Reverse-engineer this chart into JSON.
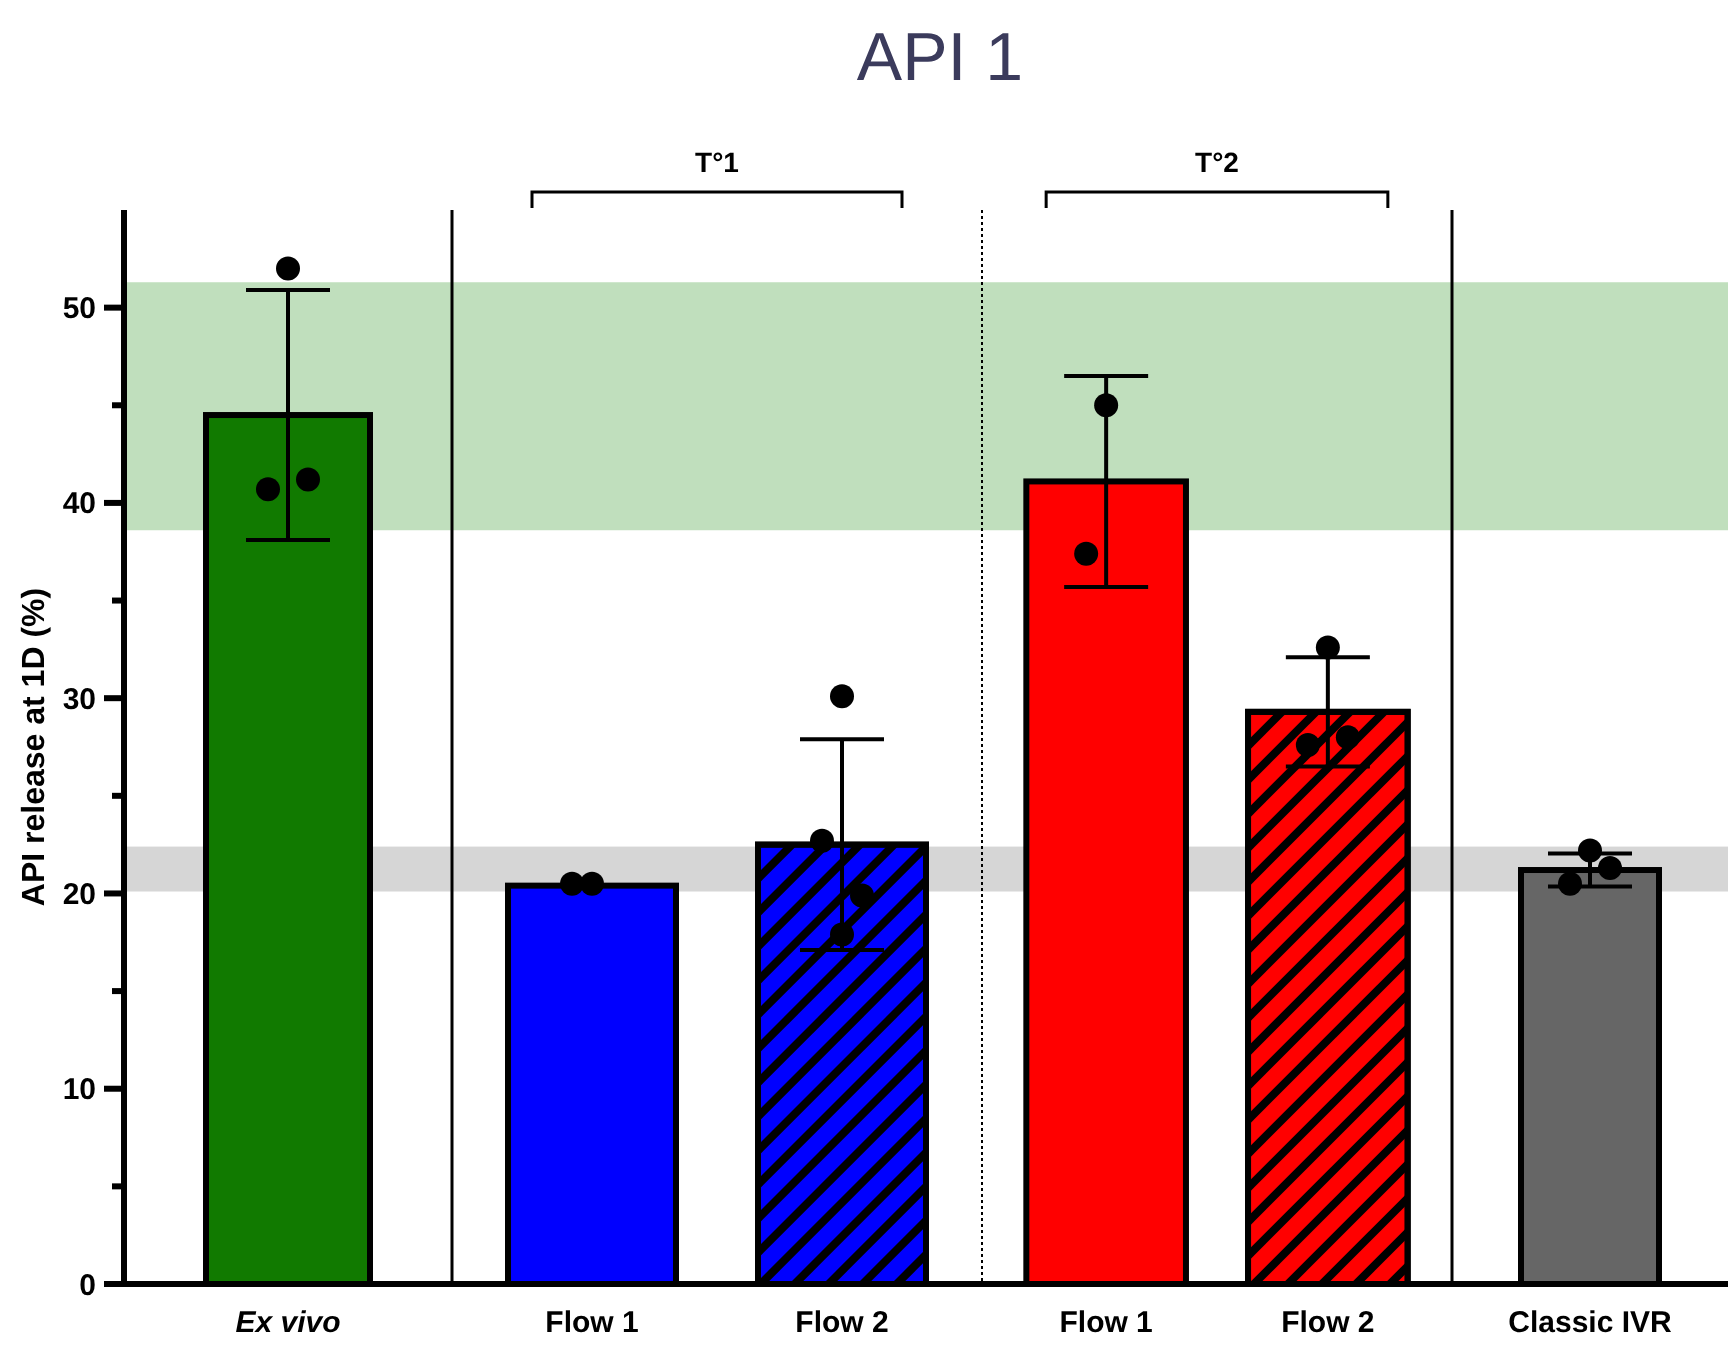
{
  "chart_data": [
    {
      "type": "bar",
      "ylabel": "API release at 1D (%)",
      "categories": [
        "Ex vivo"
      ],
      "series": [
        {
          "colors": [
            "#117a00"
          ],
          "values": [
            44.5
          ],
          "errors": [
            6.4
          ]
        },
        {
          "type": "scatter",
          "color": "#000000",
          "x": [
            "Ex vivo",
            "Ex vivo",
            "Ex vivo"
          ],
          "values": [
            52.0,
            40.7,
            41.2
          ]
        }
      ],
      "ylim": [
        0,
        55
      ],
      "yticks": [
        0,
        {
          "value": 5,
          "label": null
        },
        10,
        {
          "value": 15,
          "label": null
        },
        20,
        {
          "value": 25,
          "label": null
        },
        30,
        {
          "value": 35,
          "label": null
        },
        40,
        {
          "value": 45,
          "label": null
        },
        50
      ],
      "bands": [
        {
          "axis": "y",
          "from": 38.6,
          "to": 51.3,
          "color": "#c0dfbd"
        },
        {
          "axis": "y",
          "from": 20.1,
          "to": 22.4,
          "color": "#d6d6d6"
        }
      ],
      "marker": "circle"
    },
    {
      "type": "bar",
      "title": "API 1",
      "categories": [
        "Flow 1",
        "Flow 2"
      ],
      "series": [
        {
          "colors": [
            "#0000ff",
            "#0000ff"
          ],
          "values": [
            20.4,
            22.5
          ],
          "errors": [
            null,
            5.4
          ]
        },
        {
          "type": "scatter",
          "color": "#000000",
          "x": [
            "Flow 1",
            "Flow 1",
            "Flow 2",
            "Flow 2",
            "Flow 2",
            "Flow 2"
          ],
          "values": [
            20.5,
            20.5,
            30.1,
            22.7,
            19.9,
            17.9
          ]
        }
      ],
      "ylim": [
        0,
        55
      ],
      "tick_labels": "x",
      "bands": [
        {
          "axis": "y",
          "from": 38.6,
          "to": 51.3,
          "color": "#c0dfbd"
        },
        {
          "axis": "y",
          "from": 20.1,
          "to": 22.4,
          "color": "#d6d6d6"
        }
      ],
      "annotations": [
        "T°1"
      ],
      "marker": "circle"
    },
    {
      "type": "bar",
      "categories": [
        "Flow 1",
        "Flow 2"
      ],
      "series": [
        {
          "colors": [
            "#ff0000",
            "#ff0000"
          ],
          "values": [
            41.1,
            29.3
          ],
          "errors": [
            5.4,
            2.8
          ]
        },
        {
          "type": "scatter",
          "color": "#000000",
          "x": [
            "Flow 1",
            "Flow 1",
            "Flow 2",
            "Flow 2",
            "Flow 2"
          ],
          "values": [
            45.0,
            37.4,
            32.6,
            27.6,
            28.0
          ]
        }
      ],
      "ylim": [
        0,
        55
      ],
      "tick_labels": "x",
      "bands": [
        {
          "axis": "y",
          "from": 38.6,
          "to": 51.3,
          "color": "#c0dfbd"
        },
        {
          "axis": "y",
          "from": 20.1,
          "to": 22.4,
          "color": "#d6d6d6"
        }
      ],
      "annotations": [
        "T°2"
      ],
      "marker": "circle"
    },
    {
      "type": "bar",
      "categories": [
        "Classic IVR"
      ],
      "series": [
        {
          "colors": [
            "#666666"
          ],
          "values": [
            21.2
          ],
          "errors": [
            0.85
          ]
        },
        {
          "type": "scatter",
          "color": "#000000",
          "x": [
            "Classic IVR",
            "Classic IVR",
            "Classic IVR"
          ],
          "values": [
            22.2,
            20.5,
            21.3
          ]
        }
      ],
      "ylim": [
        0,
        55
      ],
      "tick_labels": "x",
      "bands": [
        {
          "axis": "y",
          "from": 38.6,
          "to": 51.3,
          "color": "#c0dfbd"
        },
        {
          "axis": "y",
          "from": 20.1,
          "to": 22.4,
          "color": "#d6d6d6"
        }
      ],
      "marker": "circle"
    }
  ]
}
